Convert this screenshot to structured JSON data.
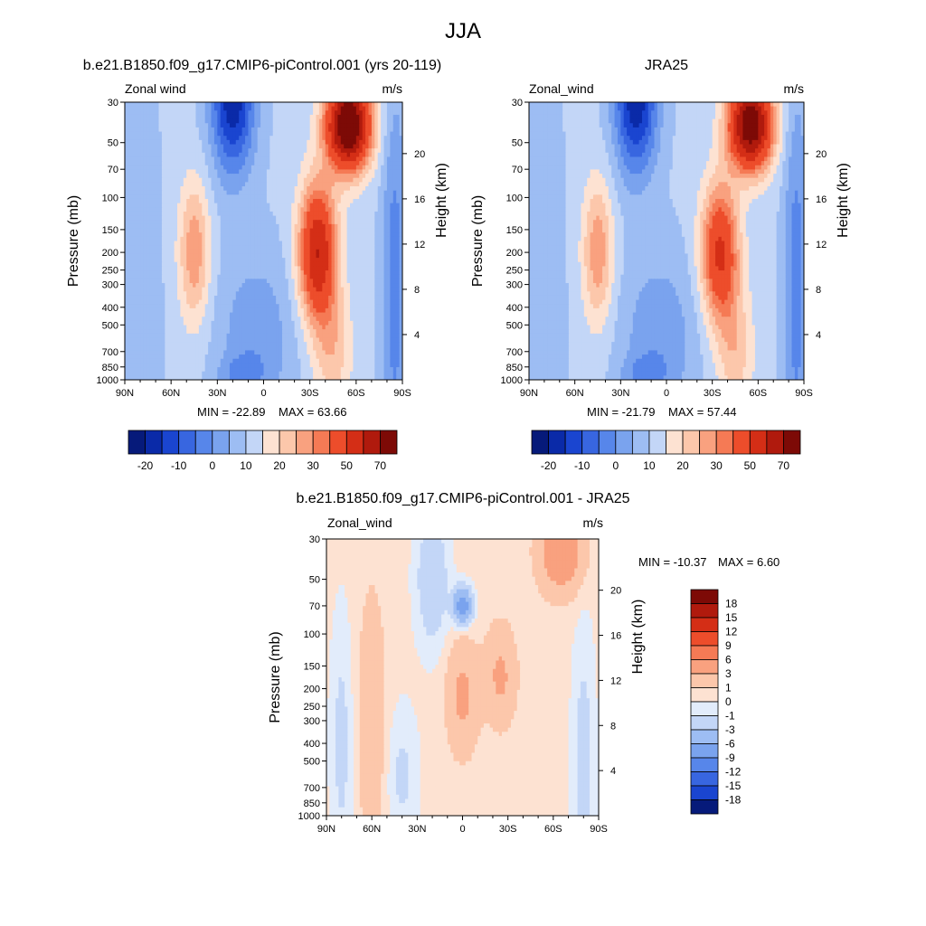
{
  "title": "JJA",
  "colors": {
    "pos": [
      "#fde2d2",
      "#fcc7ab",
      "#f9a17f",
      "#f57a55",
      "#ed4d2b",
      "#d42e16",
      "#b01a0d",
      "#7d0a06"
    ],
    "neg": [
      "#e2ecfb",
      "#c3d6f7",
      "#9dbdf3",
      "#7aa3ee",
      "#5786ea",
      "#3866e0",
      "#1a45d0",
      "#0a2aa8",
      "#061a7a"
    ],
    "white": "#ffffff"
  },
  "chart_data": [
    {
      "type": "contour",
      "title": "b.e21.B1850.f09_g17.CMIP6-piControl.001 (yrs 20-119)",
      "left_label": "Zonal wind",
      "right_label": "m/s",
      "ylabel": "Pressure (mb)",
      "ylabel_right": "Height (km)",
      "x_ticks": [
        "90N",
        "60N",
        "30N",
        "0",
        "30S",
        "60S",
        "90S"
      ],
      "y_ticks": [
        "30",
        "50",
        "70",
        "100",
        "150",
        "200",
        "250",
        "300",
        "400",
        "500",
        "700",
        "850",
        "1000"
      ],
      "height_ticks": [
        "20",
        "16",
        "12",
        "8",
        "4"
      ],
      "min_label": "MIN = -22.89",
      "max_label": "MAX =  63.66",
      "min": -22.89,
      "max": 63.66,
      "levels": [
        -25,
        -20,
        -15,
        -10,
        -5,
        0,
        5,
        10,
        15,
        20,
        25,
        30,
        40,
        50,
        60,
        70
      ]
    },
    {
      "type": "contour",
      "title": "JRA25",
      "left_label": "Zonal_wind",
      "right_label": "m/s",
      "ylabel": "Pressure (mb)",
      "ylabel_right": "Height (km)",
      "x_ticks": [
        "90N",
        "60N",
        "30N",
        "0",
        "30S",
        "60S",
        "90S"
      ],
      "y_ticks": [
        "30",
        "50",
        "70",
        "100",
        "150",
        "200",
        "250",
        "300",
        "400",
        "500",
        "700",
        "850",
        "1000"
      ],
      "height_ticks": [
        "20",
        "16",
        "12",
        "8",
        "4"
      ],
      "min_label": "MIN = -21.79",
      "max_label": "MAX =  57.44",
      "min": -21.79,
      "max": 57.44
    },
    {
      "type": "contour",
      "title": "b.e21.B1850.f09_g17.CMIP6-piControl.001 - JRA25",
      "left_label": "Zonal_wind",
      "right_label": "m/s",
      "ylabel": "Pressure (mb)",
      "ylabel_right": "Height (km)",
      "x_ticks": [
        "90N",
        "60N",
        "30N",
        "0",
        "30S",
        "60S",
        "90S"
      ],
      "y_ticks": [
        "30",
        "50",
        "70",
        "100",
        "150",
        "200",
        "250",
        "300",
        "400",
        "500",
        "700",
        "850",
        "1000"
      ],
      "height_ticks": [
        "20",
        "16",
        "12",
        "8",
        "4"
      ],
      "min_label": "MIN = -10.37",
      "max_label": "MAX =   6.60",
      "min": -10.37,
      "max": 6.6,
      "levels": [
        -18,
        -15,
        -12,
        -9,
        -6,
        -3,
        -1,
        0,
        1,
        3,
        6,
        9,
        12,
        15,
        18
      ]
    }
  ],
  "colorbar_top": {
    "labels": [
      "-20",
      "-10",
      "0",
      "10",
      "20",
      "30",
      "50",
      "70"
    ]
  },
  "colorbar_diff": {
    "labels": [
      "18",
      "15",
      "12",
      "9",
      "6",
      "3",
      "1",
      "0",
      "-1",
      "-3",
      "-6",
      "-9",
      "-12",
      "-15",
      "-18"
    ]
  }
}
